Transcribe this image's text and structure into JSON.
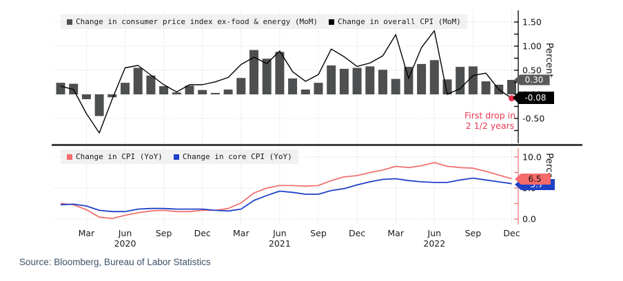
{
  "source": "Source: Bloomberg, Bureau of Labor Statistics",
  "top_chart": {
    "legend": [
      {
        "label": "Change in consumer price index ex-food & energy (MoM)",
        "color": "#4d4f50"
      },
      {
        "label": "Change in overall CPI (MoM)",
        "color": "#000000"
      }
    ],
    "ylabel": "Percent",
    "yticks": [
      {
        "label": "1.50",
        "v": 1.5
      },
      {
        "label": "1.00",
        "v": 1.0
      },
      {
        "label": "0.50",
        "v": 0.5
      },
      {
        "label": "0.00",
        "v": 0.0
      },
      {
        "label": "-0.50",
        "v": -0.5
      }
    ],
    "badges": [
      {
        "value": "0.30"
      },
      {
        "value": "-0.08"
      }
    ],
    "annotation": {
      "line1": "First drop in",
      "line2": "2 1/2 years",
      "color": "#e8384f"
    }
  },
  "bottom_chart": {
    "legend": [
      {
        "label": "Change in CPI (YoY)",
        "color": "#f56a6a"
      },
      {
        "label": "Change in core CPI (YoY)",
        "color": "#1f41c8"
      }
    ],
    "ylabel": "Percent",
    "yticks": [
      {
        "label": "10.0",
        "v": 10.0
      },
      {
        "label": "5.0",
        "v": 5.0
      },
      {
        "label": "0.0",
        "v": 0.0
      }
    ],
    "badges": [
      {
        "value": "6.5"
      },
      {
        "value": "5.7"
      }
    ]
  },
  "x_axis": {
    "ticks": [
      {
        "label": "Mar",
        "i": 2
      },
      {
        "label": "Jun",
        "year": "2020",
        "i": 5
      },
      {
        "label": "Sep",
        "i": 8
      },
      {
        "label": "Dec",
        "i": 11
      },
      {
        "label": "Mar",
        "i": 14
      },
      {
        "label": "Jun",
        "year": "2021",
        "i": 17
      },
      {
        "label": "Sep",
        "i": 20
      },
      {
        "label": "Dec",
        "i": 23
      },
      {
        "label": "Mar",
        "i": 26
      },
      {
        "label": "Jun",
        "year": "2022",
        "i": 29
      },
      {
        "label": "Sep",
        "i": 32
      },
      {
        "label": "Dec",
        "i": 35
      }
    ]
  },
  "categories": [
    "Jan 2020",
    "Feb 2020",
    "Mar 2020",
    "Apr 2020",
    "May 2020",
    "Jun 2020",
    "Jul 2020",
    "Aug 2020",
    "Sep 2020",
    "Oct 2020",
    "Nov 2020",
    "Dec 2020",
    "Jan 2021",
    "Feb 2021",
    "Mar 2021",
    "Apr 2021",
    "May 2021",
    "Jun 2021",
    "Jul 2021",
    "Aug 2021",
    "Sep 2021",
    "Oct 2021",
    "Nov 2021",
    "Dec 2021",
    "Jan 2022",
    "Feb 2022",
    "Mar 2022",
    "Apr 2022",
    "May 2022",
    "Jun 2022",
    "Jul 2022",
    "Aug 2022",
    "Sep 2022",
    "Oct 2022",
    "Nov 2022",
    "Dec 2022"
  ],
  "chart_data": [
    {
      "type": "bar",
      "title": "",
      "xlabel": "",
      "ylabel": "Percent",
      "ylim": [
        -1.05,
        1.74
      ],
      "grid": true,
      "legend_position": "top-left",
      "series": [
        {
          "name": "Change in consumer price index ex-food & energy (MoM)",
          "kind": "bar",
          "color": "#4d4f50",
          "values": [
            0.24,
            0.22,
            -0.1,
            -0.45,
            -0.06,
            0.24,
            0.55,
            0.39,
            0.17,
            0.04,
            0.18,
            0.09,
            0.03,
            0.1,
            0.34,
            0.92,
            0.74,
            0.88,
            0.33,
            0.1,
            0.24,
            0.6,
            0.53,
            0.55,
            0.58,
            0.51,
            0.32,
            0.57,
            0.63,
            0.71,
            0.31,
            0.57,
            0.58,
            0.27,
            0.2,
            0.3
          ]
        },
        {
          "name": "Change in overall CPI (MoM)",
          "kind": "line",
          "color": "#000000",
          "end_dot_color": "#e8304a",
          "values": [
            0.17,
            0.1,
            -0.4,
            -0.8,
            -0.1,
            0.55,
            0.6,
            0.4,
            0.2,
            0.05,
            0.2,
            0.2,
            0.26,
            0.35,
            0.62,
            0.77,
            0.64,
            0.9,
            0.47,
            0.27,
            0.41,
            0.94,
            0.78,
            0.58,
            0.65,
            0.8,
            1.24,
            0.33,
            0.97,
            1.32,
            0.0,
            0.12,
            0.39,
            0.44,
            0.1,
            -0.08
          ]
        }
      ]
    },
    {
      "type": "line",
      "title": "",
      "xlabel": "",
      "ylabel": "Percent",
      "ylim": [
        -1.4,
        11.6
      ],
      "grid": true,
      "legend_position": "top-left",
      "series": [
        {
          "name": "Change in CPI (YoY)",
          "kind": "line",
          "color": "#f07272",
          "values": [
            2.5,
            2.3,
            1.5,
            0.3,
            0.1,
            0.6,
            1.0,
            1.3,
            1.4,
            1.2,
            1.2,
            1.4,
            1.4,
            1.7,
            2.6,
            4.2,
            5.0,
            5.4,
            5.4,
            5.3,
            5.4,
            6.2,
            6.8,
            7.0,
            7.5,
            7.9,
            8.5,
            8.3,
            8.6,
            9.1,
            8.5,
            8.3,
            8.2,
            7.7,
            7.1,
            6.5
          ]
        },
        {
          "name": "Change in core CPI (YoY)",
          "kind": "line",
          "color": "#1f41c8",
          "values": [
            2.3,
            2.4,
            2.1,
            1.4,
            1.2,
            1.2,
            1.6,
            1.7,
            1.7,
            1.6,
            1.6,
            1.6,
            1.4,
            1.3,
            1.6,
            3.0,
            3.8,
            4.5,
            4.3,
            4.0,
            4.0,
            4.6,
            4.9,
            5.5,
            6.0,
            6.4,
            6.5,
            6.2,
            6.0,
            5.9,
            5.9,
            6.3,
            6.6,
            6.3,
            6.0,
            5.7
          ]
        }
      ]
    }
  ],
  "colors": {
    "grid": "#d0d0d0",
    "top_axis": "#000000",
    "bottom_axis": "#ef7a7a",
    "separator": "#3e3e3e",
    "last_dot": "#e8304a"
  }
}
